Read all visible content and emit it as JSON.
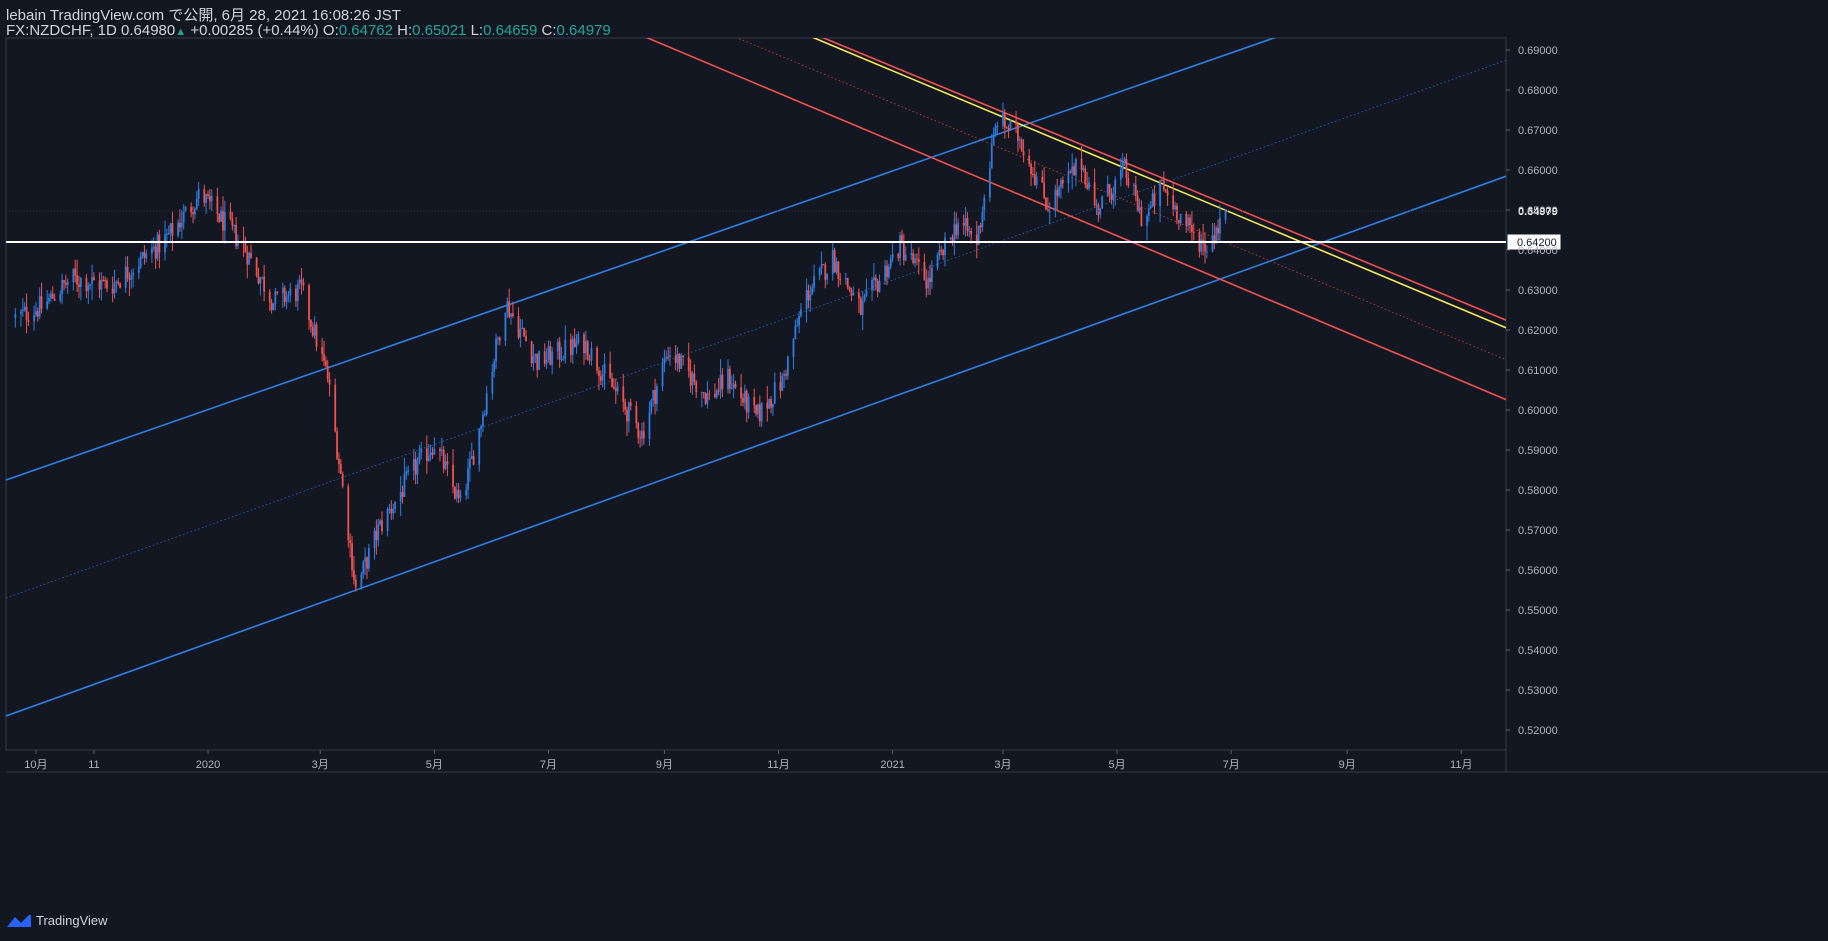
{
  "header": {
    "published": "lebain TradingView.com で公開, 6月 28, 2021 16:08:26 JST",
    "symbol": "FX:NZDCHF, 1D",
    "last": "0.64980",
    "change": "+0.00285 (+0.44%)",
    "o_label": "O:",
    "o": "0.64762",
    "h_label": "H:",
    "h": "0.65021",
    "l_label": "L:",
    "l": "0.64659",
    "c_label": "C:",
    "c": "0.64979"
  },
  "footer": {
    "brand": "TradingView",
    "logo_icon": "tradingview-logo-icon"
  },
  "colors": {
    "background": "#131722",
    "up": "#26a69a",
    "candle_up": "#2f7ce0",
    "candle_down": "#ef5350",
    "channel_blue": "#2f7fe0",
    "channel_red": "#ef5350",
    "yellow": "#f5ea55",
    "axis_text": "#b2b5be"
  },
  "chart_data": {
    "type": "candlestick",
    "ylim": [
      0.515,
      0.693
    ],
    "y_ticks": [
      "0.52000",
      "0.53000",
      "0.54000",
      "0.55000",
      "0.56000",
      "0.57000",
      "0.58000",
      "0.59000",
      "0.60000",
      "0.61000",
      "0.62000",
      "0.63000",
      "0.64000",
      "0.65000",
      "0.66000",
      "0.67000",
      "0.68000",
      "0.69000"
    ],
    "x_ticks": [
      {
        "label": "10月",
        "date": "2019-10-01"
      },
      {
        "label": "11",
        "date": "2019-11-01"
      },
      {
        "label": "2020",
        "date": "2020-01-01"
      },
      {
        "label": "3月",
        "date": "2020-03-01"
      },
      {
        "label": "5月",
        "date": "2020-05-01"
      },
      {
        "label": "7月",
        "date": "2020-07-01"
      },
      {
        "label": "9月",
        "date": "2020-09-01"
      },
      {
        "label": "11月",
        "date": "2020-11-01"
      },
      {
        "label": "2021",
        "date": "2021-01-01"
      },
      {
        "label": "3月",
        "date": "2021-03-01"
      },
      {
        "label": "5月",
        "date": "2021-05-01"
      },
      {
        "label": "7月",
        "date": "2021-07-01"
      },
      {
        "label": "9月",
        "date": "2021-09-01"
      },
      {
        "label": "11月",
        "date": "2021-11-01"
      }
    ],
    "price_path": [
      [
        "2019-09-20",
        0.623
      ],
      [
        "2019-10-05",
        0.626
      ],
      [
        "2019-10-20",
        0.633
      ],
      [
        "2019-11-10",
        0.631
      ],
      [
        "2019-12-10",
        0.643
      ],
      [
        "2019-12-28",
        0.654
      ],
      [
        "2020-01-20",
        0.641
      ],
      [
        "2020-02-05",
        0.627
      ],
      [
        "2020-02-20",
        0.63
      ],
      [
        "2020-03-05",
        0.608
      ],
      [
        "2020-03-16",
        0.57
      ],
      [
        "2020-03-20",
        0.555
      ],
      [
        "2020-04-01",
        0.57
      ],
      [
        "2020-04-20",
        0.585
      ],
      [
        "2020-05-01",
        0.592
      ],
      [
        "2020-05-15",
        0.576
      ],
      [
        "2020-05-25",
        0.595
      ],
      [
        "2020-06-08",
        0.627
      ],
      [
        "2020-06-25",
        0.612
      ],
      [
        "2020-07-20",
        0.617
      ],
      [
        "2020-08-05",
        0.605
      ],
      [
        "2020-08-20",
        0.594
      ],
      [
        "2020-09-03",
        0.615
      ],
      [
        "2020-09-25",
        0.603
      ],
      [
        "2020-10-05",
        0.608
      ],
      [
        "2020-10-20",
        0.598
      ],
      [
        "2020-11-03",
        0.607
      ],
      [
        "2020-11-15",
        0.628
      ],
      [
        "2020-11-30",
        0.638
      ],
      [
        "2020-12-15",
        0.625
      ],
      [
        "2021-01-05",
        0.641
      ],
      [
        "2021-01-20",
        0.632
      ],
      [
        "2021-02-05",
        0.647
      ],
      [
        "2021-02-15",
        0.642
      ],
      [
        "2021-02-26",
        0.673
      ],
      [
        "2021-03-10",
        0.668
      ],
      [
        "2021-03-25",
        0.651
      ],
      [
        "2021-04-12",
        0.662
      ],
      [
        "2021-04-20",
        0.65
      ],
      [
        "2021-05-05",
        0.66
      ],
      [
        "2021-05-15",
        0.647
      ],
      [
        "2021-05-25",
        0.656
      ],
      [
        "2021-06-10",
        0.644
      ],
      [
        "2021-06-18",
        0.641
      ],
      [
        "2021-06-28",
        0.6498
      ]
    ],
    "ohlc_last": {
      "open": 0.64762,
      "high": 0.65021,
      "low": 0.64659,
      "close": 0.64979
    },
    "last_price_label": "0.64979",
    "horizontal_line": {
      "price": 0.642,
      "label": "0.64200",
      "color": "#ffffff"
    },
    "trend_lines": [
      {
        "name": "blue-channel-upper",
        "color": "#2f7fe0",
        "from": [
          "2019-09-15",
          0.5825
        ],
        "to": [
          "2021-07-30",
          0.694
        ]
      },
      {
        "name": "blue-channel-lower",
        "color": "#2f7fe0",
        "from": [
          "2019-09-15",
          0.5235
        ],
        "to": [
          "2021-12-31",
          0.6645
        ]
      },
      {
        "name": "blue-channel-mid",
        "color": "#2f7fe0",
        "dotted": true,
        "from": [
          "2019-09-15",
          0.553
        ],
        "to": [
          "2021-12-31",
          0.6935
        ]
      },
      {
        "name": "red-channel-upper",
        "color": "#ef5350",
        "from": [
          "2020-11-20",
          0.694
        ],
        "to": [
          "2021-12-31",
          0.6155
        ]
      },
      {
        "name": "red-channel-lower",
        "color": "#ef5350",
        "from": [
          "2020-08-18",
          0.694
        ],
        "to": [
          "2021-12-31",
          0.5955
        ]
      },
      {
        "name": "red-channel-mid",
        "color": "#ef5350",
        "dotted": true,
        "from": [
          "2020-10-05",
          0.694
        ],
        "to": [
          "2021-12-31",
          0.6055
        ]
      },
      {
        "name": "yellow-trendline",
        "color": "#f5ea55",
        "from": [
          "2020-11-15",
          0.694
        ],
        "to": [
          "2021-12-31",
          0.6135
        ]
      }
    ]
  }
}
